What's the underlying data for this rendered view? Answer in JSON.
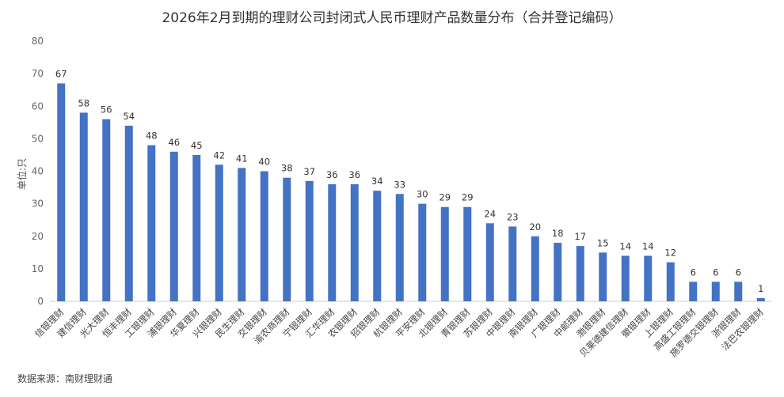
{
  "chart_data": {
    "type": "bar",
    "title": "2026年2月到期的理财公司封闭式人民币理财产品数量分布（合并登记编码）",
    "ylabel": "单位:只",
    "xlabel": "",
    "ylim": [
      0,
      80
    ],
    "yticks": [
      0,
      10,
      20,
      30,
      40,
      50,
      60,
      70,
      80
    ],
    "grid": false,
    "bar_color": "#4472C4",
    "categories": [
      "信银理财",
      "建信理财",
      "光大理财",
      "恒丰理财",
      "工银理财",
      "浦银理财",
      "华夏理财",
      "兴银理财",
      "民生理财",
      "交银理财",
      "渝农商理财",
      "宁银理财",
      "汇华理财",
      "农银理财",
      "招银理财",
      "杭银理财",
      "平安理财",
      "北银理财",
      "青银理财",
      "苏银理财",
      "中银理财",
      "南银理财",
      "广银理财",
      "中邮理财",
      "渤银理财",
      "贝莱德建信理财",
      "徽银理财",
      "上银理财",
      "高盛工银理财",
      "施罗德交银理财",
      "浙银理财",
      "法巴农银理财"
    ],
    "values": [
      67,
      58,
      56,
      54,
      48,
      46,
      45,
      42,
      41,
      40,
      38,
      37,
      36,
      36,
      34,
      33,
      30,
      29,
      29,
      24,
      23,
      20,
      18,
      17,
      15,
      14,
      14,
      12,
      6,
      6,
      6,
      1
    ],
    "source": "数据来源：南财理财通"
  }
}
